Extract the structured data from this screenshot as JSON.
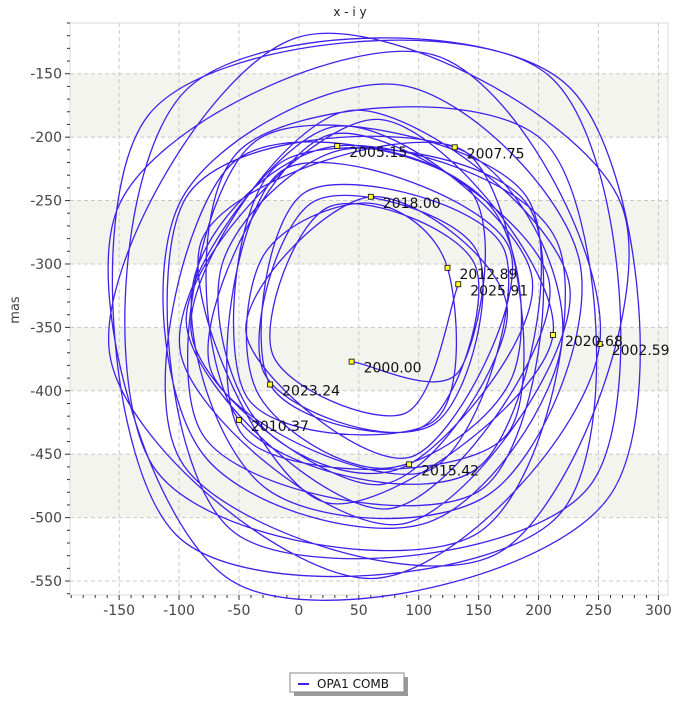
{
  "chart_data": {
    "type": "line",
    "title": "x - i y",
    "xlabel": "",
    "ylabel": "mas",
    "xlim": [
      -191,
      308
    ],
    "ylim": [
      -561,
      -110
    ],
    "xticks": [
      -150,
      -100,
      -50,
      0,
      50,
      100,
      150,
      200,
      250,
      300
    ],
    "yticks": [
      -150,
      -200,
      -250,
      -300,
      -350,
      -400,
      -450,
      -500,
      -550
    ],
    "grid": true,
    "shaded_bands": [
      [
        -200,
        -150
      ],
      [
        -300,
        -250
      ],
      [
        -400,
        -350
      ],
      [
        -500,
        -450
      ]
    ],
    "legend_position": "bottom-center",
    "colors": {
      "series": "#3d22ec",
      "marker_fill": "#ffff33",
      "band": "#f4f4ef",
      "grid": "#c8c8c8"
    },
    "series": [
      {
        "name": "OPA1 COMB",
        "x": [
          44,
          134,
          139,
          -57,
          -96,
          168,
          269,
          0,
          -158,
          61,
          251,
          112,
          -152,
          -54,
          260,
          225,
          -92,
          -122,
          146,
          217,
          32,
          -88,
          -26,
          161,
          234,
          85,
          -98,
          -80,
          107,
          220,
          130,
          -95,
          -52,
          245,
          208,
          -125,
          -102,
          216,
          208,
          -48,
          -50,
          149,
          190,
          -36,
          -80,
          152,
          192,
          -15,
          -44,
          111,
          124,
          58,
          -30,
          -33,
          73,
          178,
          162,
          36,
          -64,
          -32,
          92,
          194,
          28,
          -99,
          86,
          226,
          43,
          -90,
          67,
          174,
          60,
          -44,
          94,
          175,
          -15,
          -46,
          174,
          138,
          -81,
          22,
          212,
          66,
          -94,
          75,
          209,
          26,
          -74,
          108,
          171,
          6,
          -24,
          113,
          148,
          12,
          -29,
          102,
          147,
          25,
          -22,
          88,
          133
        ],
        "y": [
          -377,
          -384,
          -238,
          -222,
          -459,
          -527,
          -253,
          -121,
          -370,
          -548,
          -363,
          -135,
          -258,
          -551,
          -482,
          -160,
          -161,
          -459,
          -514,
          -286,
          -207,
          -314,
          -478,
          -480,
          -297,
          -159,
          -249,
          -450,
          -504,
          -357,
          -208,
          -249,
          -513,
          -472,
          -151,
          -182,
          -514,
          -499,
          -207,
          -209,
          -423,
          -461,
          -247,
          -203,
          -435,
          -478,
          -255,
          -220,
          -404,
          -425,
          -303,
          -252,
          -294,
          -404,
          -461,
          -389,
          -257,
          -210,
          -300,
          -427,
          -458,
          -308,
          -192,
          -369,
          -505,
          -318,
          -179,
          -352,
          -474,
          -337,
          -247,
          -355,
          -452,
          -286,
          -227,
          -436,
          -434,
          -211,
          -281,
          -488,
          -356,
          -186,
          -345,
          -493,
          -315,
          -198,
          -382,
          -463,
          -288,
          -243,
          -395,
          -426,
          -289,
          -251,
          -386,
          -429,
          -301,
          -255,
          -371,
          -418,
          -316
        ]
      }
    ],
    "annotations": [
      {
        "label": "2000.00",
        "x": 44,
        "y": -377
      },
      {
        "label": "2002.59",
        "x": 251,
        "y": -363
      },
      {
        "label": "2005.15",
        "x": 32,
        "y": -207
      },
      {
        "label": "2007.75",
        "x": 130,
        "y": -208
      },
      {
        "label": "2010.37",
        "x": -50,
        "y": -423
      },
      {
        "label": "2012.89",
        "x": 124,
        "y": -303
      },
      {
        "label": "2015.42",
        "x": 92,
        "y": -458
      },
      {
        "label": "2018.00",
        "x": 60,
        "y": -247
      },
      {
        "label": "2020.68",
        "x": 212,
        "y": -356
      },
      {
        "label": "2023.24",
        "x": -24,
        "y": -395
      },
      {
        "label": "2025.91",
        "x": 133,
        "y": -316
      }
    ]
  }
}
